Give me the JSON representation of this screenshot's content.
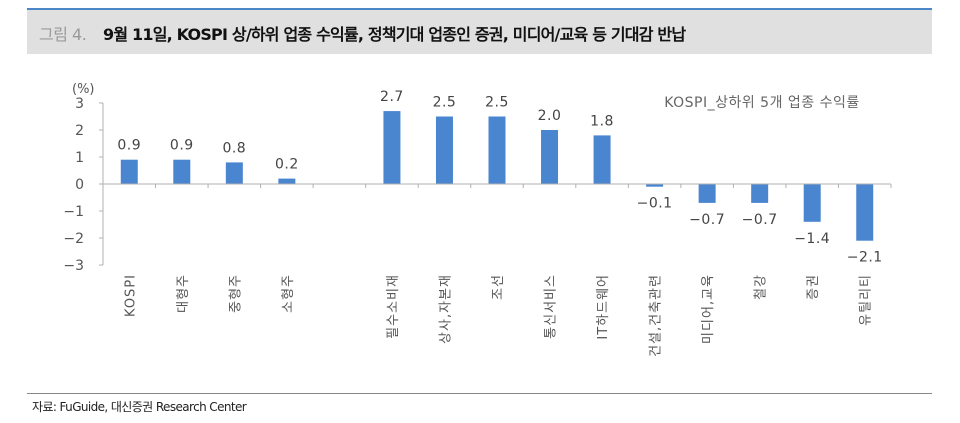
{
  "header": {
    "figure_label": "그림 4.",
    "title": "9월 11일, KOSPI 상/하위 업종 수익률, 정책기대 업종인 증권, 미디어/교육 등 기대감 반납",
    "accent_color": "#4a86c8"
  },
  "footer": {
    "source": "자료: FuGuide, 대신증권 Research Center"
  },
  "chart_data": {
    "type": "bar",
    "title": "KOSPI_상하위 5개 업종 수익률",
    "ylabel": "(%)",
    "xlabel": "",
    "ylim": [
      -3,
      3
    ],
    "yticks": [
      3,
      2,
      1,
      0,
      -1,
      -2,
      -3
    ],
    "ytick_labels": [
      "3",
      "2",
      "1",
      "0",
      "−1",
      "−2",
      "−3"
    ],
    "grid": false,
    "legend": "none",
    "bar_color": "#4a86d0",
    "categories": [
      "KOSPI",
      "대형주",
      "중형주",
      "소형주",
      "",
      "필수소비재",
      "상사,자본재",
      "조선",
      "통신서비스",
      "IT하드웨어",
      "건설,건축관련",
      "미디어,교육",
      "철강",
      "증권",
      "유틸리티"
    ],
    "values": [
      0.9,
      0.9,
      0.8,
      0.2,
      null,
      2.7,
      2.5,
      2.5,
      2.0,
      1.8,
      -0.1,
      -0.7,
      -0.7,
      -1.4,
      -2.1
    ],
    "value_labels": [
      "0.9",
      "0.9",
      "0.8",
      "0.2",
      "",
      "2.7",
      "2.5",
      "2.5",
      "2.0",
      "1.8",
      "−0.1",
      "−0.7",
      "−0.7",
      "−1.4",
      "−2.1"
    ]
  }
}
